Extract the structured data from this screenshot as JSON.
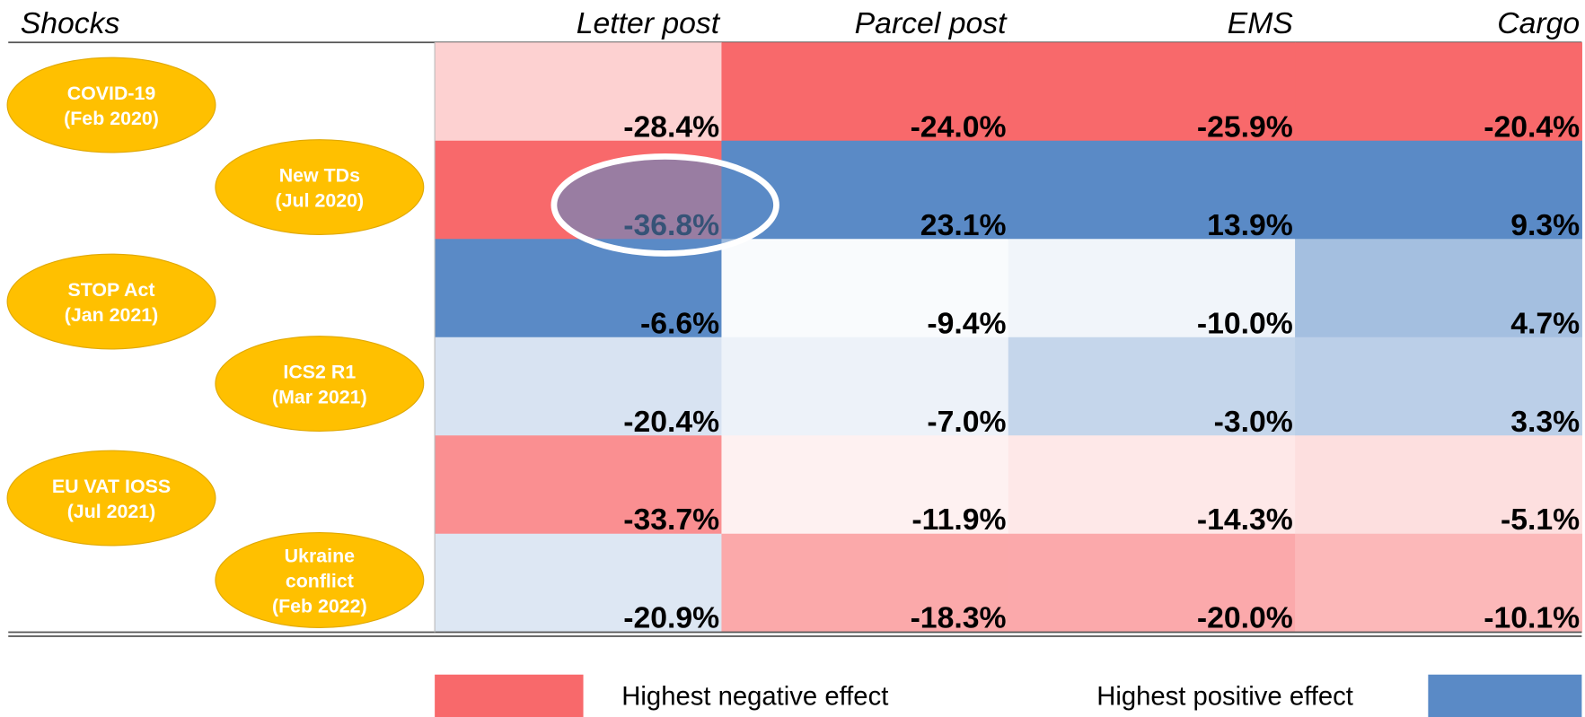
{
  "chart_data": {
    "type": "heatmap",
    "row_header": "Shocks",
    "categories": [
      "Letter post",
      "Parcel post",
      "EMS",
      "Cargo"
    ],
    "rows": [
      [
        "COVID-19",
        "(Feb 2020)"
      ],
      [
        "New TDs",
        "(Jul 2020)"
      ],
      [
        "STOP Act",
        "(Jan 2021)"
      ],
      [
        "ICS2 R1",
        "(Mar 2021)"
      ],
      [
        "EU VAT IOSS",
        "(Jul 2021)"
      ],
      [
        "Ukraine",
        "conflict",
        "(Feb 2022)"
      ]
    ],
    "values": [
      [
        -28.4,
        -24.0,
        -25.9,
        -20.4
      ],
      [
        -36.8,
        23.1,
        13.9,
        9.3
      ],
      [
        -6.6,
        -9.4,
        -10.0,
        4.7
      ],
      [
        -20.4,
        -7.0,
        -3.0,
        3.3
      ],
      [
        -33.7,
        -11.9,
        -14.3,
        -5.1
      ],
      [
        -20.9,
        -18.3,
        -20.0,
        -10.1
      ]
    ],
    "value_labels": [
      [
        "-28.4%",
        "-24.0%",
        "-25.9%",
        "-20.4%"
      ],
      [
        "-36.8%",
        "23.1%",
        "13.9%",
        "9.3%"
      ],
      [
        "-6.6%",
        "-9.4%",
        "-10.0%",
        "4.7%"
      ],
      [
        "-20.4%",
        "-7.0%",
        "-3.0%",
        "3.3%"
      ],
      [
        "-33.7%",
        "-11.9%",
        "-14.3%",
        "-5.1%"
      ],
      [
        "-20.9%",
        "-18.3%",
        "-20.0%",
        "-10.1%"
      ]
    ],
    "color_low": "#f8696b",
    "color_mid": "#ffffff",
    "color_high": "#5a8ac6",
    "legend": {
      "low": "Highest negative effect",
      "high": "Highest positive effect"
    }
  }
}
